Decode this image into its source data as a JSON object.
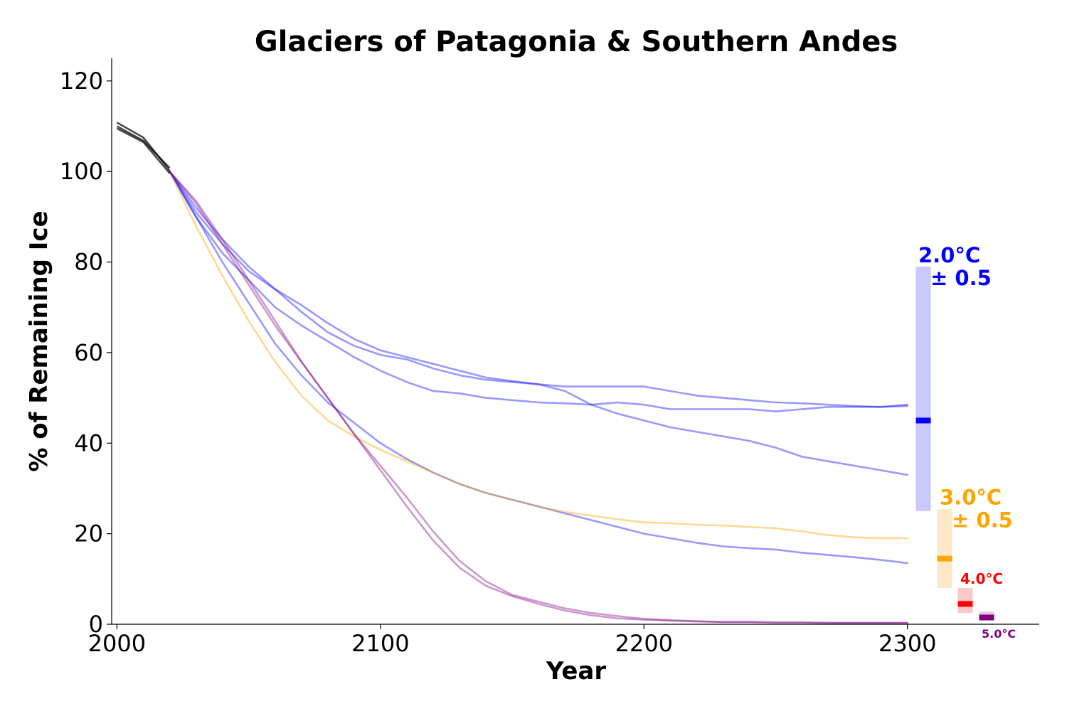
{
  "chart_data": {
    "type": "line",
    "title": "Glaciers of Patagonia & Southern Andes",
    "xlabel": "Year",
    "ylabel": "% of Remaining Ice",
    "xlim": [
      1998,
      2350
    ],
    "ylim": [
      0,
      125
    ],
    "xticks": [
      2000,
      2100,
      2200,
      2300
    ],
    "yticks": [
      0,
      20,
      40,
      60,
      80,
      100,
      120
    ],
    "grid": false,
    "historical": {
      "color": "#000000",
      "lines": [
        {
          "x": [
            2000,
            2010,
            2020
          ],
          "y": [
            110.8,
            107.5,
            100.2
          ]
        },
        {
          "x": [
            2000,
            2010,
            2020
          ],
          "y": [
            110.0,
            106.8,
            100.8
          ]
        },
        {
          "x": [
            2000,
            2010,
            2020
          ],
          "y": [
            109.5,
            106.5,
            99.6
          ]
        }
      ]
    },
    "series": [
      {
        "scenario": "2.0",
        "color": "#0000ff",
        "x": [
          2020,
          2030,
          2040,
          2050,
          2060,
          2070,
          2080,
          2090,
          2100,
          2110,
          2120,
          2130,
          2140,
          2150,
          2160,
          2170,
          2180,
          2190,
          2200,
          2210,
          2220,
          2230,
          2240,
          2250,
          2260,
          2270,
          2280,
          2290,
          2300
        ],
        "y": [
          100,
          91,
          84,
          78,
          74,
          70.5,
          66.5,
          63,
          60.5,
          59,
          57.5,
          56,
          54.5,
          53.7,
          53,
          52.5,
          52.5,
          52.5,
          52.5,
          51.5,
          50.5,
          50,
          49.5,
          49,
          48.8,
          48.5,
          48.2,
          48.0,
          48.2
        ]
      },
      {
        "scenario": "2.0",
        "color": "#0000ff",
        "x": [
          2020,
          2030,
          2040,
          2050,
          2060,
          2070,
          2080,
          2090,
          2100,
          2110,
          2120,
          2130,
          2140,
          2150,
          2160,
          2170,
          2180,
          2190,
          2200,
          2210,
          2220,
          2230,
          2240,
          2250,
          2260,
          2270,
          2280,
          2290,
          2300
        ],
        "y": [
          100,
          90,
          82,
          76,
          70,
          66,
          62.5,
          59,
          56,
          53.5,
          51.5,
          51,
          50,
          49.5,
          49,
          48.8,
          48.5,
          49,
          48.5,
          47.5,
          47.5,
          47.5,
          47.5,
          47,
          47.5,
          48,
          48,
          48,
          48.5
        ]
      },
      {
        "scenario": "2.0",
        "color": "#0000ff",
        "x": [
          2020,
          2030,
          2040,
          2050,
          2060,
          2070,
          2080,
          2090,
          2100,
          2110,
          2120,
          2130,
          2140,
          2150,
          2160,
          2170,
          2180,
          2190,
          2200,
          2210,
          2220,
          2230,
          2240,
          2250,
          2260,
          2270,
          2280,
          2290,
          2300
        ],
        "y": [
          100,
          92,
          85,
          79,
          74,
          69,
          64.5,
          61.5,
          59.5,
          58.5,
          56.5,
          55,
          54,
          53.5,
          53,
          51.5,
          48.5,
          46.5,
          45,
          43.5,
          42.5,
          41.5,
          40.5,
          39,
          37,
          36,
          35,
          34,
          33
        ]
      },
      {
        "scenario": "2.0",
        "color": "#0000ff",
        "x": [
          2020,
          2030,
          2040,
          2050,
          2060,
          2070,
          2080,
          2090,
          2100,
          2110,
          2120,
          2130,
          2140,
          2150,
          2160,
          2170,
          2180,
          2190,
          2200,
          2210,
          2220,
          2230,
          2240,
          2250,
          2260,
          2270,
          2280,
          2290,
          2300
        ],
        "y": [
          100,
          90,
          80,
          71,
          62,
          55,
          49,
          44.5,
          40,
          36.5,
          33.5,
          31,
          29,
          27.5,
          26,
          24.5,
          23,
          21.5,
          20,
          19,
          18,
          17.2,
          16.8,
          16.5,
          15.8,
          15.3,
          14.8,
          14.2,
          13.5
        ]
      },
      {
        "scenario": "3.0",
        "color": "#ffa500",
        "x": [
          2020,
          2030,
          2040,
          2050,
          2060,
          2070,
          2080,
          2090,
          2100,
          2110,
          2120,
          2130,
          2140,
          2150,
          2160,
          2170,
          2180,
          2190,
          2200,
          2210,
          2220,
          2230,
          2240,
          2250,
          2260,
          2270,
          2280,
          2290,
          2300
        ],
        "y": [
          100,
          88,
          77,
          67,
          58,
          50.5,
          45,
          41.5,
          38.5,
          36,
          33.5,
          31,
          29,
          27.5,
          26,
          24.8,
          24,
          23.2,
          22.5,
          22.3,
          22,
          21.8,
          21.5,
          21.2,
          20.5,
          19.7,
          19.2,
          19.0,
          19.0
        ]
      },
      {
        "scenario": "5.0",
        "color": "#800080",
        "x": [
          2020,
          2030,
          2040,
          2050,
          2060,
          2070,
          2080,
          2090,
          2100,
          2110,
          2120,
          2130,
          2140,
          2150,
          2160,
          2170,
          2180,
          2190,
          2200,
          2210,
          2220,
          2230,
          2240,
          2250,
          2260,
          2270,
          2280,
          2290,
          2300
        ],
        "y": [
          100,
          93.5,
          85,
          76,
          67,
          58,
          50,
          42,
          34,
          26,
          18.5,
          12.5,
          8.5,
          6.2,
          4.5,
          3,
          2,
          1.3,
          1,
          0.8,
          0.6,
          0.5,
          0.5,
          0.4,
          0.4,
          0.3,
          0.3,
          0.3,
          0.3
        ]
      },
      {
        "scenario": "5.0",
        "color": "#800080",
        "x": [
          2020,
          2030,
          2040,
          2050,
          2060,
          2070,
          2080,
          2090,
          2100,
          2110,
          2120,
          2130,
          2140,
          2150,
          2160,
          2170,
          2180,
          2190,
          2200,
          2210,
          2220,
          2230,
          2240,
          2250,
          2260,
          2270,
          2280,
          2290,
          2300
        ],
        "y": [
          100,
          93,
          84,
          75,
          66,
          58,
          50,
          42,
          35,
          28,
          20.5,
          14,
          9.5,
          6.5,
          5,
          3.5,
          2.5,
          1.8,
          1.2,
          0.9,
          0.7,
          0.5,
          0.5,
          0.4,
          0.4,
          0.3,
          0.3,
          0.3,
          0.3
        ]
      }
    ],
    "range_bars": [
      {
        "color": "#0000ff",
        "fill": "#c8c8fa",
        "low": 25,
        "high": 79,
        "median": 45,
        "label_temp": "2.0°C",
        "label_unc": "± 0.5",
        "x_slot": 0
      },
      {
        "color": "#ffa500",
        "fill": "#fde9c8",
        "low": 8,
        "high": 25.5,
        "median": 14.5,
        "label_temp": "3.0°C",
        "label_unc": "± 0.5",
        "x_slot": 1
      },
      {
        "color": "#ff0000",
        "fill": "#f9c8c8",
        "low": 2.5,
        "high": 8,
        "median": 4.5,
        "label_temp": "4.0°C",
        "label_unc": "",
        "x_slot": 2
      },
      {
        "color": "#800080",
        "fill": "#e4c8e4",
        "low": 0.8,
        "high": 2.8,
        "median": 1.5,
        "label_temp": "5.0°C",
        "label_unc": "",
        "x_slot": 3
      }
    ]
  }
}
